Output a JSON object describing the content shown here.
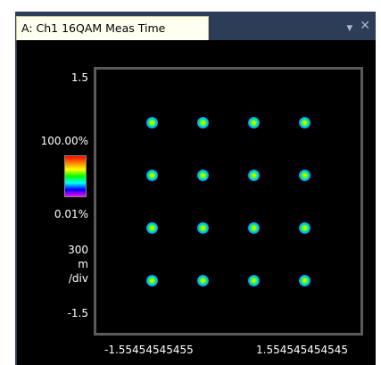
{
  "window": {
    "tab_title": "A: Ch1 16QAM Meas Time"
  },
  "icons": {
    "dropdown": "chevron-down-icon",
    "close": "close-icon"
  },
  "axis": {
    "y_top": "1.5",
    "y_bottom": "-1.5",
    "scale_value": "300",
    "scale_unit": "m",
    "scale_per": "/div",
    "x_left": "-1.55454545455",
    "x_right": "1.554545454545"
  },
  "colorbar": {
    "max_label": "100.00%",
    "min_label": "0.01%"
  },
  "chart_data": {
    "type": "scatter",
    "series": [
      {
        "x": [
          -0.9,
          -0.3,
          0.3,
          0.9,
          -0.9,
          -0.3,
          0.3,
          0.9,
          -0.9,
          -0.3,
          0.3,
          0.9,
          -0.9,
          -0.3,
          0.3,
          0.9
        ],
        "y": [
          0.9,
          0.9,
          0.9,
          0.9,
          0.3,
          0.3,
          0.3,
          0.3,
          -0.3,
          -0.3,
          -0.3,
          -0.3,
          -0.9,
          -0.9,
          -0.9,
          -0.9
        ]
      }
    ],
    "xlim": [
      -1.55454545455,
      1.554545454545
    ],
    "ylim": [
      -1.5,
      1.5
    ]
  }
}
